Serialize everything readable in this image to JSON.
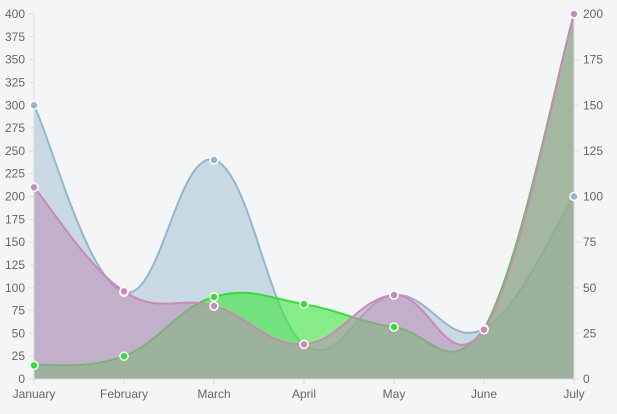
{
  "chart_data": {
    "type": "area",
    "categories": [
      "January",
      "February",
      "March",
      "April",
      "May",
      "June",
      "July"
    ],
    "left_axis": {
      "min": 0,
      "max": 400,
      "step": 25,
      "ticks": [
        "0",
        "25",
        "50",
        "75",
        "100",
        "125",
        "150",
        "175",
        "200",
        "225",
        "250",
        "275",
        "300",
        "325",
        "350",
        "375",
        "400"
      ]
    },
    "right_axis": {
      "min": 0,
      "max": 200,
      "step": 25,
      "ticks": [
        "0",
        "25",
        "50",
        "75",
        "100",
        "125",
        "150",
        "175",
        "200"
      ]
    },
    "series": [
      {
        "axis": "left",
        "values": [
          300,
          95,
          240,
          38,
          92,
          55,
          200
        ],
        "color": "#92b8c9",
        "fill": "rgba(146,184,201,0.45)"
      },
      {
        "axis": "left",
        "values": [
          15,
          25,
          90,
          82,
          57,
          55,
          400
        ],
        "color": "#33dd33",
        "fill": "rgba(60,230,60,0.6)"
      },
      {
        "axis": "right",
        "values": [
          105,
          48,
          40,
          19,
          46,
          27,
          200
        ],
        "color": "#cc88b6",
        "fill": "rgba(190,140,180,0.55)"
      }
    ],
    "grid": false,
    "legend": "none"
  }
}
